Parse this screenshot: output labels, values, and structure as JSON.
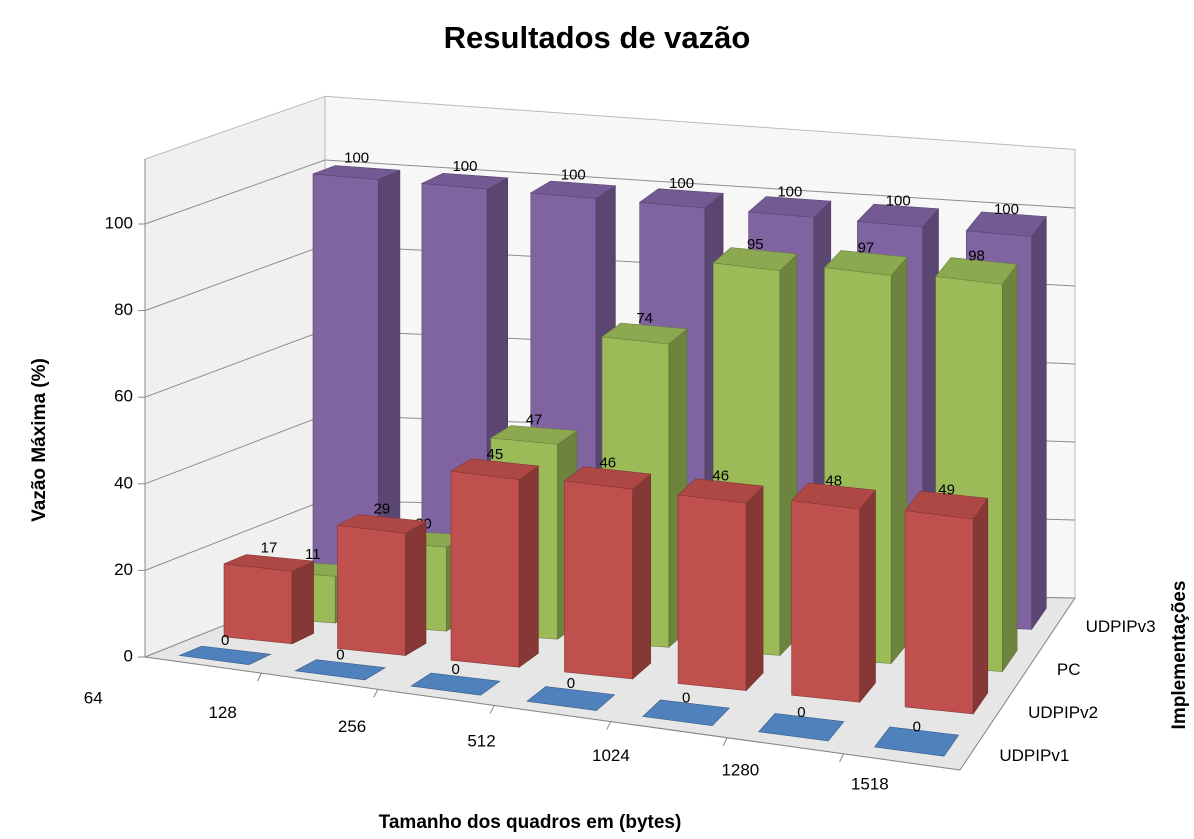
{
  "chart_data": {
    "type": "bar3d",
    "title": "Resultados de vazão",
    "y_label": "Vazão Máxima (%)",
    "x_label": "Tamanho dos quadros em (bytes)",
    "z_label": "Implementações",
    "categories": [
      "64",
      "128",
      "256",
      "512",
      "1024",
      "1280",
      "1518"
    ],
    "series": [
      {
        "name": "UDPIPv1",
        "color": "#4f81bd",
        "values": [
          0,
          0,
          0,
          0,
          0,
          0,
          0
        ]
      },
      {
        "name": "UDPIPv2",
        "color": "#c0504d",
        "values": [
          17,
          29,
          45,
          46,
          46,
          48,
          49
        ]
      },
      {
        "name": "PC",
        "color": "#9bbb59",
        "values": [
          11,
          20,
          47,
          74,
          95,
          97,
          98
        ]
      },
      {
        "name": "UDPIPv3",
        "color": "#8064a2",
        "values": [
          100,
          100,
          100,
          100,
          100,
          100,
          100
        ]
      }
    ],
    "ylim": [
      0,
      100
    ],
    "yticks": [
      0,
      20,
      40,
      60,
      80,
      100
    ],
    "grid": true
  }
}
